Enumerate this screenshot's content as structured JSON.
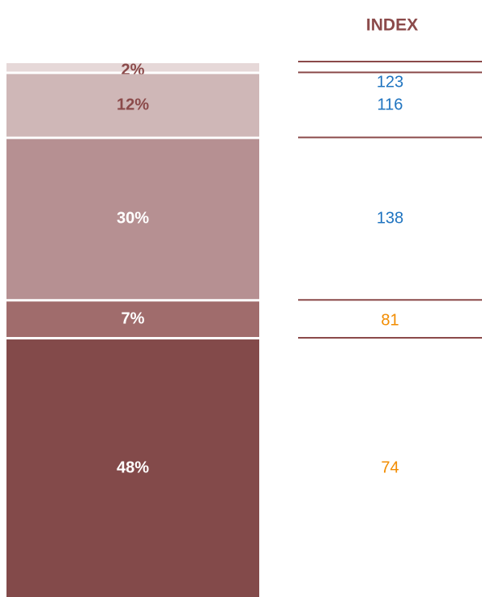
{
  "chart_data": {
    "type": "stacked_bar",
    "values": [
      2,
      12,
      30,
      7,
      48
    ],
    "value_labels": [
      "2%",
      "12%",
      "30%",
      "7%",
      "48%"
    ],
    "colors": [
      "#e6d8d8",
      "#cfb7b7",
      "#b69092",
      "#a06c6c",
      "#834a4a"
    ],
    "label_colors": [
      "#8b4a4a",
      "#8b4a4a",
      "#ffffff",
      "#ffffff",
      "#ffffff"
    ],
    "index_title": "INDEX",
    "index_values": [
      123,
      116,
      138,
      81,
      74
    ],
    "index_colors": [
      "#1f74c0",
      "#1f74c0",
      "#1f74c0",
      "#f28c00",
      "#f28c00"
    ],
    "index_rule_color": "#8b4a4a"
  }
}
